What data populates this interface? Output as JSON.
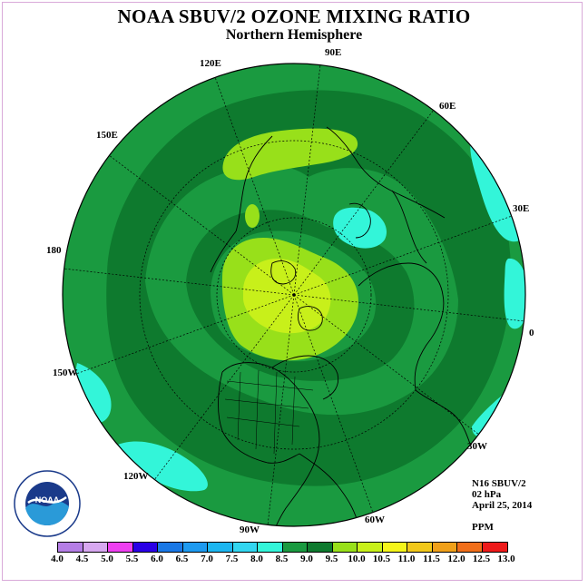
{
  "title": "NOAA SBUV/2 OZONE MIXING RATIO",
  "subtitle": "Northern Hemisphere",
  "longitude_labels": {
    "lon_90e": "90E",
    "lon_60e": "60E",
    "lon_30e": "30E",
    "lon_0": "0",
    "lon_30w": "30W",
    "lon_60w": "60W",
    "lon_90w": "90W",
    "lon_120w": "120W",
    "lon_150w": "150W",
    "lon_180": "180",
    "lon_150e": "150E",
    "lon_120e": "120E"
  },
  "info": {
    "satellite": "N16 SBUV/2",
    "level": "02 hPa",
    "date": "April 25, 2014",
    "units": "PPM"
  },
  "colorbar": {
    "ticks": [
      "4.0",
      "4.5",
      "5.0",
      "5.5",
      "6.0",
      "6.5",
      "7.0",
      "7.5",
      "8.0",
      "8.5",
      "9.0",
      "9.5",
      "10.0",
      "10.5",
      "11.0",
      "11.5",
      "12.0",
      "12.5",
      "13.0"
    ],
    "colors": [
      "#b57ee6",
      "#d7a8f0",
      "#ee3ff0",
      "#2a00e6",
      "#1a78e6",
      "#1e9af0",
      "#1db6f0",
      "#32d6f0",
      "#33f5d9",
      "#1a9a40",
      "#0e7a2e",
      "#98e01a",
      "#c8f01a",
      "#f5f51a",
      "#f2c81a",
      "#f0a01a",
      "#f06e1a",
      "#ee1a1a",
      "#8a5a3a"
    ]
  },
  "map_colors": {
    "level_7_5_8": "#33f5d9",
    "level_8_8_5": "#1a9a40",
    "level_8_5_9": "#0e7a2e",
    "level_9_9_5": "#98e01a",
    "level_9_5_10": "#c8f01a"
  }
}
